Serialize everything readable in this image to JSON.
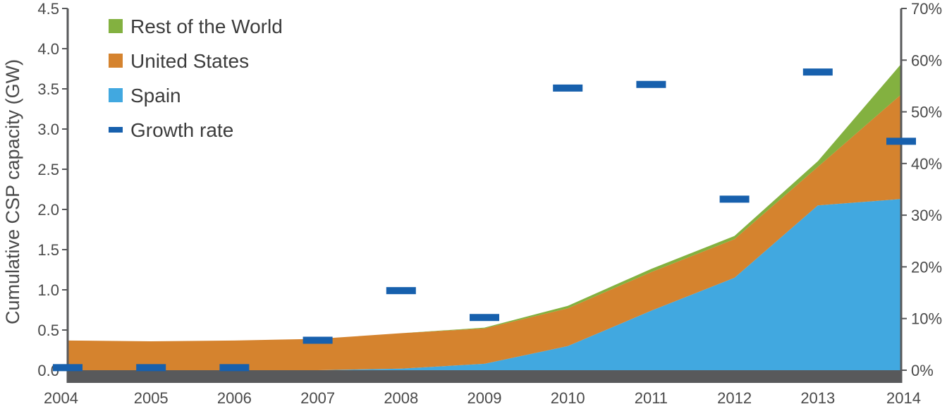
{
  "chart_data": {
    "type": "area",
    "title": "",
    "xlabel": "",
    "ylabel": "Cumulative CSP capacity (GW)",
    "y2label": "",
    "categories": [
      "2004",
      "2005",
      "2006",
      "2007",
      "2008",
      "2009",
      "2010",
      "2011",
      "2012",
      "2013",
      "2014"
    ],
    "ylim": [
      0,
      4.5
    ],
    "y2lim": [
      0,
      70
    ],
    "yticks": [
      "0.0",
      "0.5",
      "1.0",
      "1.5",
      "2.0",
      "2.5",
      "3.0",
      "3.5",
      "4.0",
      "4.5"
    ],
    "y2ticks": [
      "0%",
      "10%",
      "20%",
      "30%",
      "40%",
      "50%",
      "60%",
      "70%"
    ],
    "series": [
      {
        "name": "Spain",
        "type": "area",
        "axis": "left",
        "color": "#41A8E0",
        "values": [
          0.0,
          0.0,
          0.0,
          0.0,
          0.02,
          0.08,
          0.3,
          0.74,
          1.15,
          2.05,
          2.13
        ]
      },
      {
        "name": "United States",
        "type": "area",
        "axis": "left",
        "color": "#D5832E",
        "values": [
          0.37,
          0.36,
          0.37,
          0.39,
          0.44,
          0.44,
          0.47,
          0.48,
          0.48,
          0.48,
          1.3
        ]
      },
      {
        "name": "Rest of the World",
        "type": "area",
        "axis": "left",
        "color": "#83B140",
        "values": [
          0.0,
          0.0,
          0.0,
          0.0,
          0.0,
          0.01,
          0.03,
          0.04,
          0.04,
          0.07,
          0.38
        ]
      },
      {
        "name": "Growth rate",
        "type": "marker",
        "axis": "right",
        "color": "#1760AD",
        "values": [
          0.5,
          0.5,
          0.5,
          5.8,
          15.4,
          10.2,
          54.6,
          55.3,
          33.1,
          57.7,
          44.3
        ]
      }
    ],
    "legend": {
      "position": "top-left",
      "order": [
        "Rest of the World",
        "United States",
        "Spain",
        "Growth rate"
      ]
    },
    "grid": false
  }
}
